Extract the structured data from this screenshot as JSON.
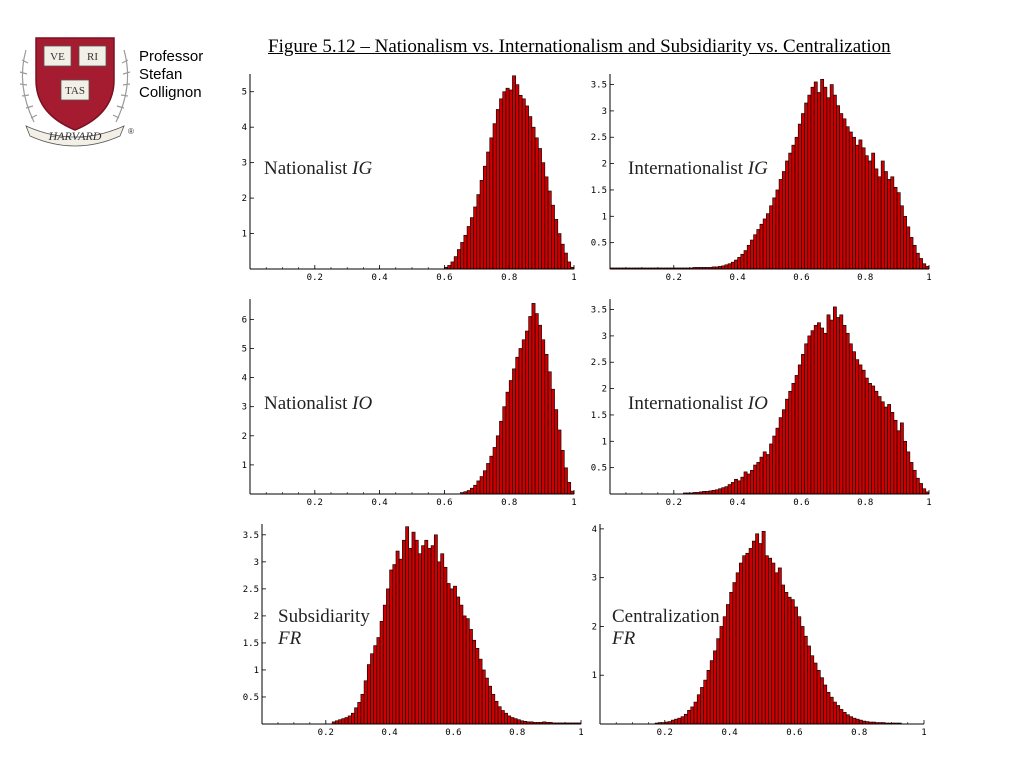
{
  "header": {
    "author_lines": [
      "Professor",
      "Stefan",
      "Collignon"
    ],
    "figure_title": "Figure 5.12 – Nationalism vs. Internationalism and Subsidiarity vs. Centralization"
  },
  "logo": {
    "shield_text": [
      "VE",
      "RI",
      "TAS"
    ],
    "banner_text": "HARVARD",
    "registered": "®",
    "colors": {
      "shield": "#a51c30",
      "book": "#f2efe6",
      "wreath": "#9a9a9a"
    }
  },
  "chart_data": [
    {
      "type": "bar",
      "name": "Nationalist IG",
      "label_main": "Nationalist ",
      "label_ital": "IG",
      "color": "#cc0000",
      "xlim": [
        0,
        1
      ],
      "ylim": [
        0,
        5.5
      ],
      "x_ticks": [
        "0.2",
        "0.4",
        "0.6",
        "0.8",
        "1"
      ],
      "y_ticks": [
        "1",
        "2",
        "3",
        "4",
        "5"
      ],
      "x": [
        0.605,
        0.615,
        0.625,
        0.635,
        0.645,
        0.655,
        0.665,
        0.675,
        0.685,
        0.695,
        0.705,
        0.715,
        0.725,
        0.735,
        0.745,
        0.755,
        0.765,
        0.775,
        0.785,
        0.795,
        0.805,
        0.815,
        0.825,
        0.835,
        0.845,
        0.855,
        0.865,
        0.875,
        0.885,
        0.895,
        0.905,
        0.915,
        0.925,
        0.935,
        0.945,
        0.955,
        0.965,
        0.975,
        0.985,
        0.995
      ],
      "values": [
        0.05,
        0.1,
        0.2,
        0.35,
        0.55,
        0.75,
        0.95,
        1.2,
        1.45,
        1.75,
        2.1,
        2.5,
        2.9,
        3.3,
        3.7,
        4.1,
        4.5,
        4.8,
        5.0,
        5.1,
        5.05,
        5.45,
        5.2,
        4.9,
        4.8,
        4.6,
        4.3,
        4.0,
        3.7,
        3.4,
        3.0,
        2.6,
        2.2,
        1.8,
        1.4,
        1.0,
        0.7,
        0.45,
        0.2,
        0.05
      ]
    },
    {
      "type": "bar",
      "name": "Internationalist IG",
      "label_main": "Internationalist ",
      "label_ital": "IG",
      "color": "#cc0000",
      "xlim": [
        0,
        1
      ],
      "ylim": [
        0,
        3.7
      ],
      "x_ticks": [
        "0.2",
        "0.4",
        "0.6",
        "0.8",
        "1"
      ],
      "y_ticks": [
        "0.5",
        "1",
        "1.5",
        "2",
        "2.5",
        "3",
        "3.5"
      ],
      "x": [
        0.005,
        0.015,
        0.025,
        0.035,
        0.045,
        0.055,
        0.065,
        0.075,
        0.085,
        0.095,
        0.105,
        0.115,
        0.125,
        0.135,
        0.145,
        0.155,
        0.165,
        0.175,
        0.185,
        0.195,
        0.205,
        0.215,
        0.225,
        0.235,
        0.245,
        0.255,
        0.265,
        0.275,
        0.285,
        0.295,
        0.305,
        0.315,
        0.325,
        0.335,
        0.345,
        0.355,
        0.365,
        0.375,
        0.385,
        0.395,
        0.405,
        0.415,
        0.425,
        0.435,
        0.445,
        0.455,
        0.465,
        0.475,
        0.485,
        0.495,
        0.505,
        0.515,
        0.525,
        0.535,
        0.545,
        0.555,
        0.565,
        0.575,
        0.585,
        0.595,
        0.605,
        0.615,
        0.625,
        0.635,
        0.645,
        0.655,
        0.665,
        0.675,
        0.685,
        0.695,
        0.705,
        0.715,
        0.725,
        0.735,
        0.745,
        0.755,
        0.765,
        0.775,
        0.785,
        0.795,
        0.805,
        0.815,
        0.825,
        0.835,
        0.845,
        0.855,
        0.865,
        0.875,
        0.885,
        0.895,
        0.905,
        0.915,
        0.925,
        0.935,
        0.945,
        0.955,
        0.965,
        0.975,
        0.985,
        0.995
      ],
      "values": [
        0.02,
        0.02,
        0.02,
        0.02,
        0.02,
        0.02,
        0.02,
        0.02,
        0.02,
        0.02,
        0.02,
        0.02,
        0.02,
        0.02,
        0.02,
        0.02,
        0.02,
        0.02,
        0.02,
        0.02,
        0.02,
        0.02,
        0.02,
        0.02,
        0.02,
        0.02,
        0.03,
        0.03,
        0.03,
        0.03,
        0.03,
        0.03,
        0.04,
        0.04,
        0.05,
        0.06,
        0.08,
        0.1,
        0.13,
        0.17,
        0.22,
        0.28,
        0.35,
        0.45,
        0.55,
        0.65,
        0.75,
        0.85,
        0.95,
        1.05,
        1.2,
        1.35,
        1.5,
        1.7,
        1.85,
        2.05,
        2.2,
        2.35,
        2.5,
        2.75,
        2.95,
        3.15,
        3.3,
        3.45,
        3.55,
        3.35,
        3.6,
        3.45,
        3.25,
        3.5,
        3.3,
        3.1,
        2.95,
        2.85,
        2.7,
        2.6,
        2.5,
        2.35,
        2.45,
        2.3,
        2.15,
        2.05,
        2.2,
        1.9,
        1.75,
        2.05,
        1.85,
        1.7,
        1.75,
        1.55,
        1.45,
        1.2,
        1.0,
        0.8,
        0.6,
        0.45,
        0.3,
        0.2,
        0.1,
        0.05
      ]
    },
    {
      "type": "bar",
      "name": "Nationalist IO",
      "label_main": "Nationalist ",
      "label_ital": "IO",
      "color": "#cc0000",
      "xlim": [
        0,
        1
      ],
      "ylim": [
        0,
        6.7
      ],
      "x_ticks": [
        "0.2",
        "0.4",
        "0.6",
        "0.8",
        "1"
      ],
      "y_ticks": [
        "1",
        "2",
        "3",
        "4",
        "5",
        "6"
      ],
      "x": [
        0.655,
        0.665,
        0.675,
        0.685,
        0.695,
        0.705,
        0.715,
        0.725,
        0.735,
        0.745,
        0.755,
        0.765,
        0.775,
        0.785,
        0.795,
        0.805,
        0.815,
        0.825,
        0.835,
        0.845,
        0.855,
        0.865,
        0.875,
        0.885,
        0.895,
        0.905,
        0.915,
        0.925,
        0.935,
        0.945,
        0.955,
        0.965,
        0.975,
        0.985,
        0.995
      ],
      "values": [
        0.05,
        0.08,
        0.12,
        0.2,
        0.3,
        0.45,
        0.6,
        0.8,
        1.05,
        1.3,
        1.6,
        2.0,
        2.5,
        3.0,
        3.5,
        3.9,
        4.3,
        4.7,
        5.0,
        5.3,
        5.6,
        6.1,
        6.55,
        6.2,
        5.8,
        5.3,
        4.8,
        4.2,
        3.6,
        2.9,
        2.2,
        1.5,
        0.9,
        0.4,
        0.1
      ]
    },
    {
      "type": "bar",
      "name": "Internationalist IO",
      "label_main": "Internationalist ",
      "label_ital": "IO",
      "color": "#cc0000",
      "xlim": [
        0,
        1
      ],
      "ylim": [
        0,
        3.7
      ],
      "x_ticks": [
        "0.2",
        "0.4",
        "0.6",
        "0.8",
        "1"
      ],
      "y_ticks": [
        "0.5",
        "1",
        "1.5",
        "2",
        "2.5",
        "3",
        "3.5"
      ],
      "x": [
        0.235,
        0.245,
        0.255,
        0.265,
        0.275,
        0.285,
        0.295,
        0.305,
        0.315,
        0.325,
        0.335,
        0.345,
        0.355,
        0.365,
        0.375,
        0.385,
        0.395,
        0.405,
        0.415,
        0.425,
        0.435,
        0.445,
        0.455,
        0.465,
        0.475,
        0.485,
        0.495,
        0.505,
        0.515,
        0.525,
        0.535,
        0.545,
        0.555,
        0.565,
        0.575,
        0.585,
        0.595,
        0.605,
        0.615,
        0.625,
        0.635,
        0.645,
        0.655,
        0.665,
        0.675,
        0.685,
        0.695,
        0.705,
        0.715,
        0.725,
        0.735,
        0.745,
        0.755,
        0.765,
        0.775,
        0.785,
        0.795,
        0.805,
        0.815,
        0.825,
        0.835,
        0.845,
        0.855,
        0.865,
        0.875,
        0.885,
        0.895,
        0.905,
        0.915,
        0.925,
        0.935,
        0.945,
        0.955,
        0.965,
        0.975,
        0.985,
        0.995
      ],
      "values": [
        0.02,
        0.02,
        0.02,
        0.03,
        0.03,
        0.04,
        0.05,
        0.05,
        0.06,
        0.07,
        0.08,
        0.1,
        0.12,
        0.14,
        0.18,
        0.22,
        0.28,
        0.25,
        0.32,
        0.42,
        0.38,
        0.45,
        0.55,
        0.6,
        0.7,
        0.8,
        0.75,
        0.95,
        1.1,
        1.25,
        1.45,
        1.6,
        1.8,
        1.95,
        2.1,
        2.25,
        2.45,
        2.65,
        2.85,
        3.0,
        3.1,
        3.2,
        3.25,
        3.15,
        3.05,
        3.4,
        3.3,
        3.55,
        3.35,
        3.4,
        3.2,
        3.05,
        2.85,
        2.7,
        2.55,
        2.45,
        2.35,
        2.2,
        2.1,
        2.05,
        1.95,
        1.85,
        1.75,
        1.65,
        1.7,
        1.55,
        1.4,
        1.2,
        1.35,
        1.0,
        0.8,
        0.6,
        0.45,
        0.3,
        0.2,
        0.1,
        0.04
      ]
    },
    {
      "type": "bar",
      "name": "Subsidiarity FR",
      "label_main": "Subsidiarity",
      "label_ital": "FR",
      "color": "#cc0000",
      "xlim": [
        0,
        1
      ],
      "ylim": [
        0,
        3.7
      ],
      "x_ticks": [
        "0.2",
        "0.4",
        "0.6",
        "0.8",
        "1"
      ],
      "y_ticks": [
        "0.5",
        "1",
        "1.5",
        "2",
        "2.5",
        "3",
        "3.5"
      ],
      "x": [
        0.225,
        0.235,
        0.245,
        0.255,
        0.265,
        0.275,
        0.285,
        0.295,
        0.305,
        0.315,
        0.325,
        0.335,
        0.345,
        0.355,
        0.365,
        0.375,
        0.385,
        0.395,
        0.405,
        0.415,
        0.425,
        0.435,
        0.445,
        0.455,
        0.465,
        0.475,
        0.485,
        0.495,
        0.505,
        0.515,
        0.525,
        0.535,
        0.545,
        0.555,
        0.565,
        0.575,
        0.585,
        0.595,
        0.605,
        0.615,
        0.625,
        0.635,
        0.645,
        0.655,
        0.665,
        0.675,
        0.685,
        0.695,
        0.705,
        0.715,
        0.725,
        0.735,
        0.745,
        0.755,
        0.765,
        0.775,
        0.785,
        0.795,
        0.805,
        0.815,
        0.825,
        0.835,
        0.845,
        0.855,
        0.865,
        0.875,
        0.885,
        0.895,
        0.905,
        0.915,
        0.925,
        0.935,
        0.945,
        0.955,
        0.965,
        0.975,
        0.985,
        0.995
      ],
      "values": [
        0.04,
        0.06,
        0.08,
        0.1,
        0.12,
        0.15,
        0.2,
        0.3,
        0.4,
        0.55,
        0.8,
        1.1,
        1.3,
        1.45,
        1.6,
        1.9,
        2.2,
        2.5,
        2.85,
        2.95,
        3.2,
        3.05,
        3.4,
        3.65,
        3.25,
        3.55,
        3.4,
        3.15,
        3.3,
        3.4,
        3.25,
        3.3,
        3.5,
        3.0,
        3.15,
        2.9,
        2.6,
        2.5,
        2.55,
        2.35,
        2.2,
        2.0,
        1.95,
        1.75,
        1.55,
        1.4,
        1.2,
        1.0,
        0.85,
        0.7,
        0.55,
        0.42,
        0.32,
        0.25,
        0.2,
        0.15,
        0.12,
        0.1,
        0.08,
        0.06,
        0.05,
        0.04,
        0.04,
        0.03,
        0.03,
        0.03,
        0.04,
        0.03,
        0.03,
        0.02,
        0.02,
        0.02,
        0.02,
        0.02,
        0.02,
        0.02,
        0.02,
        0.02
      ]
    },
    {
      "type": "bar",
      "name": "Centralization FR",
      "label_main": "Centralization",
      "label_ital": "FR",
      "color": "#cc0000",
      "xlim": [
        0,
        1
      ],
      "ylim": [
        0,
        4.1
      ],
      "x_ticks": [
        "0.2",
        "0.4",
        "0.6",
        "0.8",
        "1"
      ],
      "y_ticks": [
        "1",
        "2",
        "3",
        "4"
      ],
      "x": [
        0.175,
        0.185,
        0.195,
        0.205,
        0.215,
        0.225,
        0.235,
        0.245,
        0.255,
        0.265,
        0.275,
        0.285,
        0.295,
        0.305,
        0.315,
        0.325,
        0.335,
        0.345,
        0.355,
        0.365,
        0.375,
        0.385,
        0.395,
        0.405,
        0.415,
        0.425,
        0.435,
        0.445,
        0.455,
        0.465,
        0.475,
        0.485,
        0.495,
        0.505,
        0.515,
        0.525,
        0.535,
        0.545,
        0.555,
        0.565,
        0.575,
        0.585,
        0.595,
        0.605,
        0.615,
        0.625,
        0.635,
        0.645,
        0.655,
        0.665,
        0.675,
        0.685,
        0.695,
        0.705,
        0.715,
        0.725,
        0.735,
        0.745,
        0.755,
        0.765,
        0.775,
        0.785,
        0.795,
        0.805,
        0.815,
        0.825,
        0.835,
        0.845,
        0.855,
        0.865,
        0.875,
        0.885,
        0.895,
        0.905,
        0.915,
        0.925
      ],
      "values": [
        0.02,
        0.03,
        0.03,
        0.04,
        0.05,
        0.08,
        0.1,
        0.12,
        0.15,
        0.2,
        0.28,
        0.35,
        0.45,
        0.6,
        0.75,
        0.9,
        1.1,
        1.3,
        1.5,
        1.75,
        2.0,
        2.2,
        2.45,
        2.7,
        2.9,
        3.1,
        3.3,
        3.45,
        3.5,
        3.6,
        3.75,
        3.9,
        3.7,
        3.95,
        3.45,
        3.4,
        3.3,
        3.1,
        3.2,
        2.85,
        2.7,
        2.6,
        2.55,
        2.4,
        2.2,
        2.0,
        1.8,
        1.6,
        1.4,
        1.25,
        1.1,
        0.95,
        0.8,
        0.65,
        0.55,
        0.45,
        0.38,
        0.3,
        0.24,
        0.19,
        0.15,
        0.12,
        0.1,
        0.08,
        0.06,
        0.05,
        0.04,
        0.04,
        0.03,
        0.03,
        0.03,
        0.02,
        0.02,
        0.02,
        0.02,
        0.02
      ]
    }
  ]
}
